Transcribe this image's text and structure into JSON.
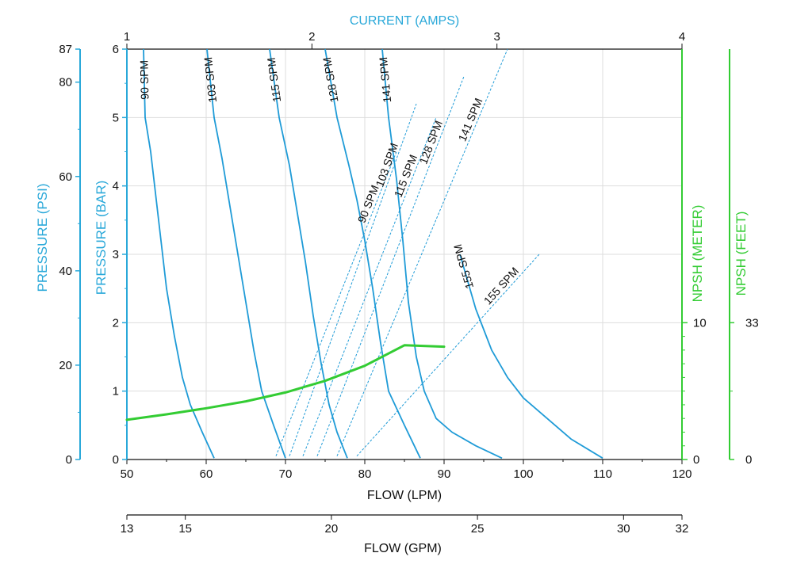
{
  "chart_data": {
    "type": "line",
    "title": "",
    "x_axis": {
      "label": "FLOW (LPM)",
      "range": [
        50,
        120
      ],
      "ticks": [
        "50",
        "60",
        "70",
        "80",
        "90",
        "100",
        "110",
        "120"
      ]
    },
    "x_axis_secondary": {
      "label": "FLOW (GPM)",
      "range": [
        13,
        32
      ],
      "ticks": [
        "13",
        "15",
        "20",
        "25",
        "30",
        "32"
      ]
    },
    "x_axis_top": {
      "label": "CURRENT (AMPS)",
      "range": [
        1,
        4
      ],
      "ticks": [
        "1",
        "2",
        "3",
        "4"
      ]
    },
    "y_axis_psi": {
      "label": "PRESSURE (PSI)",
      "range": [
        0,
        87
      ],
      "ticks": [
        "0",
        "20",
        "40",
        "60",
        "80",
        "87"
      ]
    },
    "y_axis_bar": {
      "label": "PRESSURE (BAR)",
      "range": [
        0,
        6
      ],
      "ticks": [
        "0",
        "1",
        "2",
        "3",
        "4",
        "5",
        "6"
      ]
    },
    "y_axis_npsh_meter": {
      "label": "NPSH (METER)",
      "range": [
        0,
        30
      ],
      "ticks": [
        "0",
        "10"
      ]
    },
    "y_axis_npsh_feet": {
      "label": "NPSH (FEET)",
      "range": [
        0,
        99
      ],
      "ticks": [
        "0",
        "33"
      ]
    },
    "grid": true,
    "pressure_curves": [
      {
        "label": "90 SPM",
        "x": [
          52.1,
          52.3,
          53,
          54,
          55,
          56,
          57,
          58,
          59.5,
          61
        ],
        "y": [
          6,
          5,
          4.5,
          3.5,
          2.5,
          1.8,
          1.2,
          0.8,
          0.4,
          0.02
        ]
      },
      {
        "label": "103 SPM",
        "x": [
          60.1,
          61,
          62,
          63,
          64,
          65,
          66,
          67,
          68.5,
          70
        ],
        "y": [
          6,
          5,
          4.4,
          3.7,
          3.0,
          2.3,
          1.6,
          1.0,
          0.5,
          0.02
        ]
      },
      {
        "label": "115 SPM",
        "x": [
          68,
          69.2,
          70.5,
          71.5,
          72.5,
          73.5,
          74.5,
          75.5,
          76.5,
          77.8
        ],
        "y": [
          6,
          5,
          4.3,
          3.6,
          2.9,
          2.1,
          1.4,
          0.8,
          0.4,
          0.02
        ]
      },
      {
        "label": "128 SPM",
        "x": [
          75,
          76.5,
          78,
          79,
          80,
          81,
          82,
          83,
          85,
          87
        ],
        "y": [
          6,
          5,
          4.3,
          3.8,
          3.2,
          2.5,
          1.7,
          1.0,
          0.5,
          0.02
        ]
      },
      {
        "label": "141 SPM",
        "x": [
          82.2,
          83,
          84,
          84.8,
          85.5,
          86.5,
          87.5,
          89,
          91,
          94,
          97.3
        ],
        "y": [
          6,
          5,
          4.1,
          3.2,
          2.3,
          1.5,
          1.0,
          0.6,
          0.4,
          0.2,
          0.02
        ]
      },
      {
        "label": "155 SPM",
        "x": [
          92,
          93,
          94,
          95,
          96,
          98,
          100,
          103,
          106,
          110
        ],
        "y": [
          3.0,
          2.6,
          2.2,
          1.9,
          1.6,
          1.2,
          0.9,
          0.6,
          0.3,
          0.02
        ]
      }
    ],
    "current_lines": [
      {
        "label": "90 SPM",
        "x": [
          68.8,
          84
        ],
        "y": [
          0.05,
          4.5
        ]
      },
      {
        "label": "103 SPM",
        "x": [
          70.5,
          86.5
        ],
        "y": [
          0.05,
          5.2
        ]
      },
      {
        "label": "115 SPM",
        "x": [
          72.2,
          89
        ],
        "y": [
          0.05,
          5.0
        ]
      },
      {
        "label": "128 SPM",
        "x": [
          74,
          92.5
        ],
        "y": [
          0.05,
          5.6
        ]
      },
      {
        "label": "141 SPM",
        "x": [
          76.5,
          98
        ],
        "y": [
          0.05,
          6
        ]
      },
      {
        "label": "155 SPM",
        "x": [
          79,
          102
        ],
        "y": [
          0.05,
          3.0
        ]
      }
    ],
    "npsh_curve": {
      "x": [
        50,
        55,
        60,
        65,
        70,
        75,
        80,
        85,
        90
      ],
      "y": [
        0.58,
        0.66,
        0.75,
        0.85,
        0.98,
        1.15,
        1.37,
        1.67,
        1.65
      ]
    },
    "colors": {
      "pressure_axis": "#29a8d9",
      "curves": "#1f9bd7",
      "npsh": "#33cc33",
      "grid": "#dddddd",
      "text": "#111111"
    }
  }
}
